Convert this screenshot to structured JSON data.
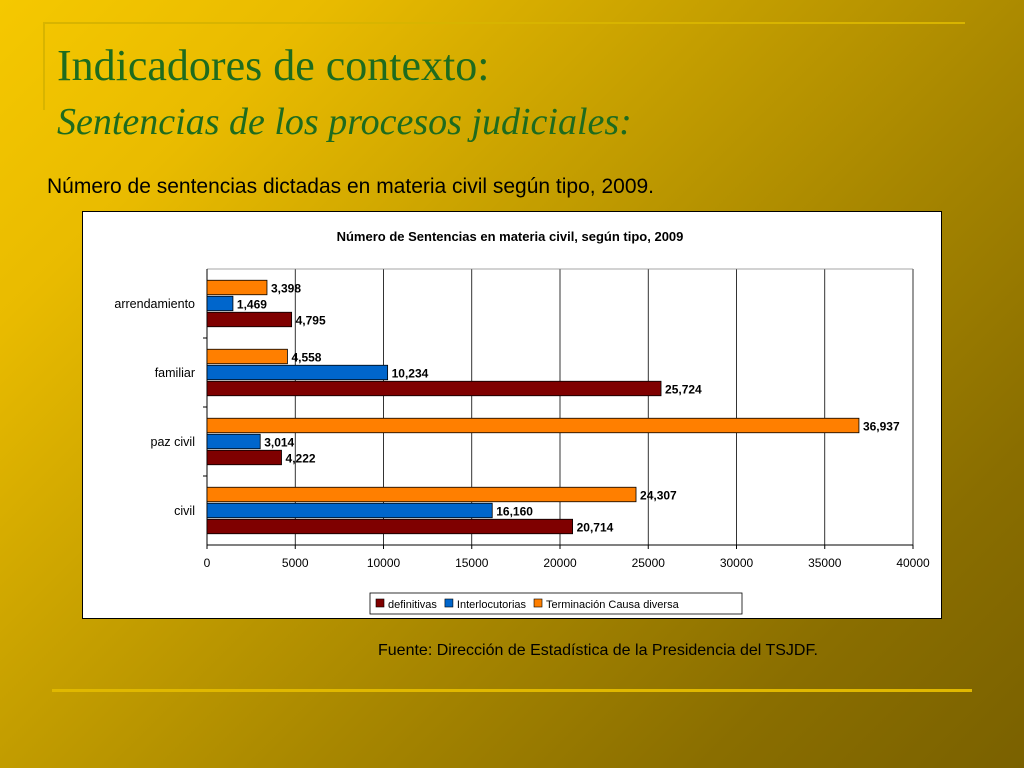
{
  "slide": {
    "title": "Indicadores de contexto:",
    "subtitle_heading": "Sentencias de los procesos judiciales:",
    "caption": "Número de sentencias dictadas en materia civil según tipo, 2009.",
    "source": "Fuente: Dirección de Estadística de la Presidencia del TSJDF."
  },
  "chart_data": {
    "type": "bar",
    "orientation": "horizontal",
    "title": "Número de Sentencias en materia civil, según tipo, 2009",
    "xlabel": "",
    "ylabel": "",
    "categories": [
      "arrendamiento",
      "familiar",
      "paz civil",
      "civil"
    ],
    "series": [
      {
        "name": "Terminación Causa diversa",
        "color": "#ff7f00",
        "values": [
          3398,
          4558,
          36937,
          24307
        ],
        "labels": [
          "3,398",
          "4,558",
          "36,937",
          "24,307"
        ]
      },
      {
        "name": "Interlocutorias",
        "color": "#0066cc",
        "values": [
          1469,
          10234,
          3014,
          16160
        ],
        "labels": [
          "1,469",
          "10,234",
          "3,014",
          "16,160"
        ]
      },
      {
        "name": "definitivas",
        "color": "#7f0000",
        "values": [
          4795,
          25724,
          4222,
          20714
        ],
        "labels": [
          "4,795",
          "25,724",
          "4,222",
          "20,714"
        ]
      }
    ],
    "xlim": [
      0,
      40000
    ],
    "xticks": [
      0,
      5000,
      10000,
      15000,
      20000,
      25000,
      30000,
      35000,
      40000
    ],
    "xtick_labels": [
      "0",
      "5000",
      "10000",
      "15000",
      "20000",
      "25000",
      "30000",
      "35000",
      "40000"
    ],
    "grid": true,
    "legend": {
      "position": "bottom",
      "order": [
        "definitivas",
        "Interlocutorias",
        "Terminación Causa diversa"
      ]
    }
  }
}
